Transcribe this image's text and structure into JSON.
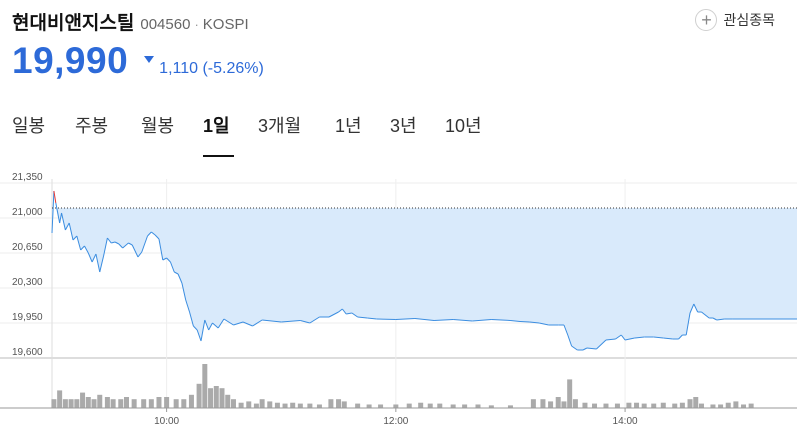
{
  "stock": {
    "name": "현대비앤지스틸",
    "code": "004560",
    "separator": "·",
    "market": "KOSPI",
    "price": "19,990",
    "change": "1,110 (-5.26%)",
    "direction": "down"
  },
  "favorite": {
    "label": "관심종목",
    "icon": "plus-circle-icon"
  },
  "tabs": [
    {
      "label": "일봉",
      "active": false
    },
    {
      "label": "주봉",
      "active": false
    },
    {
      "label": "월봉",
      "active": false
    },
    {
      "label": "1일",
      "active": true
    },
    {
      "label": "3개월",
      "active": false
    },
    {
      "label": "1년",
      "active": false
    },
    {
      "label": "3년",
      "active": false
    },
    {
      "label": "10년",
      "active": false
    }
  ],
  "colors": {
    "down": "#2d6ad8",
    "up": "#e53935",
    "line": "#3b8de0",
    "fill": "#d9eafb",
    "volume": "#aaaaaa"
  },
  "chart_data": {
    "type": "area",
    "prev_close": 21100,
    "ylim": [
      19600,
      21350
    ],
    "yticks": [
      {
        "value": 21350,
        "label": "21,350"
      },
      {
        "value": 21000,
        "label": "21,000"
      },
      {
        "value": 20650,
        "label": "20,650"
      },
      {
        "value": 20300,
        "label": "20,300"
      },
      {
        "value": 19950,
        "label": "19,950"
      },
      {
        "value": 19600,
        "label": "19,600"
      }
    ],
    "xlim": [
      540,
      930
    ],
    "xticks": [
      {
        "value": 600,
        "label": "10:00"
      },
      {
        "value": 720,
        "label": "12:00"
      },
      {
        "value": 840,
        "label": "14:00"
      }
    ],
    "series": [
      {
        "values": [
          [
            540,
            20850
          ],
          [
            541,
            21270
          ],
          [
            542,
            21150
          ],
          [
            544,
            20950
          ],
          [
            545,
            21050
          ],
          [
            547,
            20880
          ],
          [
            549,
            20950
          ],
          [
            551,
            20780
          ],
          [
            553,
            20820
          ],
          [
            555,
            20680
          ],
          [
            557,
            20720
          ],
          [
            559,
            20650
          ],
          [
            561,
            20560
          ],
          [
            563,
            20640
          ],
          [
            565,
            20460
          ],
          [
            567,
            20620
          ],
          [
            569,
            20800
          ],
          [
            571,
            20750
          ],
          [
            573,
            20760
          ],
          [
            575,
            20740
          ],
          [
            577,
            20700
          ],
          [
            580,
            20750
          ],
          [
            582,
            20730
          ],
          [
            585,
            20610
          ],
          [
            587,
            20660
          ],
          [
            590,
            20820
          ],
          [
            592,
            20860
          ],
          [
            594,
            20830
          ],
          [
            596,
            20790
          ],
          [
            598,
            20580
          ],
          [
            600,
            20600
          ],
          [
            602,
            20560
          ],
          [
            604,
            20460
          ],
          [
            606,
            20440
          ],
          [
            608,
            20350
          ],
          [
            610,
            20180
          ],
          [
            612,
            20060
          ],
          [
            614,
            19920
          ],
          [
            616,
            19880
          ],
          [
            618,
            19770
          ],
          [
            620,
            19980
          ],
          [
            622,
            19880
          ],
          [
            624,
            19950
          ],
          [
            627,
            19900
          ],
          [
            630,
            19990
          ],
          [
            635,
            19930
          ],
          [
            640,
            19960
          ],
          [
            645,
            19920
          ],
          [
            650,
            19980
          ],
          [
            660,
            19960
          ],
          [
            670,
            19975
          ],
          [
            675,
            19950
          ],
          [
            680,
            20010
          ],
          [
            685,
            20010
          ],
          [
            690,
            20060
          ],
          [
            692,
            20090
          ],
          [
            694,
            20040
          ],
          [
            697,
            20050
          ],
          [
            700,
            20010
          ],
          [
            705,
            20000
          ],
          [
            710,
            19990
          ],
          [
            720,
            19985
          ],
          [
            730,
            19995
          ],
          [
            740,
            19975
          ],
          [
            750,
            19985
          ],
          [
            760,
            19970
          ],
          [
            770,
            19985
          ],
          [
            780,
            19975
          ],
          [
            785,
            19965
          ],
          [
            790,
            19960
          ],
          [
            795,
            19950
          ],
          [
            800,
            19930
          ],
          [
            805,
            19930
          ],
          [
            808,
            19930
          ],
          [
            810,
            19830
          ],
          [
            812,
            19720
          ],
          [
            815,
            19680
          ],
          [
            818,
            19680
          ],
          [
            820,
            19700
          ],
          [
            825,
            19690
          ],
          [
            830,
            19780
          ],
          [
            835,
            19790
          ],
          [
            838,
            19830
          ],
          [
            840,
            19780
          ],
          [
            845,
            19800
          ],
          [
            850,
            19810
          ],
          [
            855,
            19810
          ],
          [
            860,
            19800
          ],
          [
            865,
            19790
          ],
          [
            868,
            19790
          ],
          [
            870,
            19830
          ],
          [
            872,
            19830
          ],
          [
            874,
            20050
          ],
          [
            876,
            20140
          ],
          [
            878,
            20060
          ],
          [
            880,
            20060
          ],
          [
            884,
            20000
          ],
          [
            886,
            20000
          ],
          [
            888,
            19980
          ],
          [
            892,
            19990
          ],
          [
            896,
            19990
          ],
          [
            930,
            19990
          ]
        ]
      }
    ],
    "volume": [
      [
        541,
        0.2
      ],
      [
        544,
        0.4
      ],
      [
        547,
        0.2
      ],
      [
        550,
        0.2
      ],
      [
        553,
        0.2
      ],
      [
        556,
        0.35
      ],
      [
        559,
        0.25
      ],
      [
        562,
        0.2
      ],
      [
        565,
        0.3
      ],
      [
        569,
        0.25
      ],
      [
        572,
        0.2
      ],
      [
        576,
        0.2
      ],
      [
        579,
        0.25
      ],
      [
        583,
        0.2
      ],
      [
        588,
        0.2
      ],
      [
        592,
        0.2
      ],
      [
        596,
        0.25
      ],
      [
        600,
        0.25
      ],
      [
        605,
        0.2
      ],
      [
        609,
        0.2
      ],
      [
        613,
        0.3
      ],
      [
        617,
        0.55
      ],
      [
        620,
        1.0
      ],
      [
        623,
        0.45
      ],
      [
        626,
        0.5
      ],
      [
        629,
        0.45
      ],
      [
        632,
        0.3
      ],
      [
        635,
        0.2
      ],
      [
        639,
        0.12
      ],
      [
        643,
        0.15
      ],
      [
        647,
        0.1
      ],
      [
        650,
        0.2
      ],
      [
        654,
        0.15
      ],
      [
        658,
        0.12
      ],
      [
        662,
        0.1
      ],
      [
        666,
        0.12
      ],
      [
        670,
        0.1
      ],
      [
        675,
        0.1
      ],
      [
        680,
        0.08
      ],
      [
        686,
        0.2
      ],
      [
        690,
        0.2
      ],
      [
        693,
        0.15
      ],
      [
        700,
        0.1
      ],
      [
        706,
        0.08
      ],
      [
        712,
        0.08
      ],
      [
        720,
        0.08
      ],
      [
        727,
        0.1
      ],
      [
        733,
        0.12
      ],
      [
        738,
        0.1
      ],
      [
        743,
        0.1
      ],
      [
        750,
        0.08
      ],
      [
        756,
        0.08
      ],
      [
        763,
        0.08
      ],
      [
        770,
        0.06
      ],
      [
        780,
        0.06
      ],
      [
        792,
        0.2
      ],
      [
        797,
        0.2
      ],
      [
        801,
        0.15
      ],
      [
        805,
        0.25
      ],
      [
        808,
        0.15
      ],
      [
        811,
        0.65
      ],
      [
        814,
        0.2
      ],
      [
        819,
        0.12
      ],
      [
        824,
        0.1
      ],
      [
        830,
        0.1
      ],
      [
        836,
        0.1
      ],
      [
        842,
        0.12
      ],
      [
        846,
        0.12
      ],
      [
        850,
        0.1
      ],
      [
        855,
        0.1
      ],
      [
        860,
        0.12
      ],
      [
        866,
        0.1
      ],
      [
        870,
        0.12
      ],
      [
        874,
        0.2
      ],
      [
        877,
        0.25
      ],
      [
        880,
        0.1
      ],
      [
        886,
        0.08
      ],
      [
        890,
        0.08
      ],
      [
        894,
        0.12
      ],
      [
        898,
        0.15
      ],
      [
        902,
        0.08
      ],
      [
        906,
        0.1
      ]
    ]
  }
}
